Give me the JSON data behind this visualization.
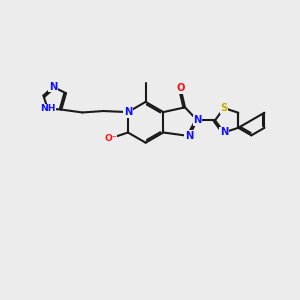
{
  "bg_color": "#ececec",
  "bond_color": "#1a1a1a",
  "bond_width": 1.5,
  "atom_colors": {
    "N": "#1010ff",
    "O": "#ff1010",
    "S": "#ccaa00",
    "H": "#008888"
  },
  "figsize": [
    3.0,
    3.0
  ],
  "dpi": 100,
  "xlim": [
    0,
    10
  ],
  "ylim": [
    0,
    10
  ]
}
